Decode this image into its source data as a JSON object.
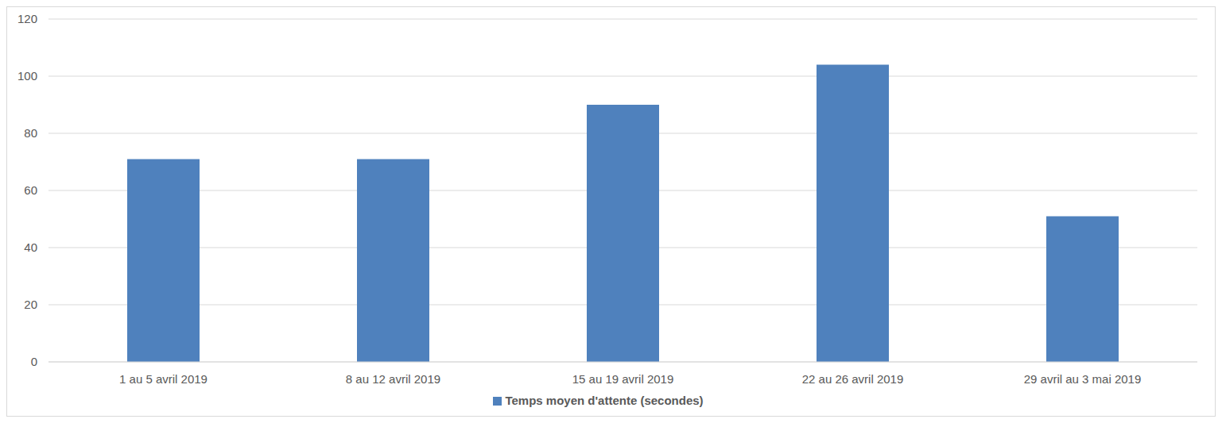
{
  "chart_data": {
    "type": "bar",
    "categories": [
      "1 au 5 avril 2019",
      "8 au 12 avril 2019",
      "15 au 19 avril 2019",
      "22 au 26 avril 2019",
      "29 avril au 3 mai 2019"
    ],
    "series": [
      {
        "name": "Temps moyen d'attente (secondes)",
        "color": "#4f81bd",
        "values": [
          71,
          71,
          90,
          104,
          51
        ]
      }
    ],
    "ylim": [
      0,
      120
    ],
    "yticks": [
      0,
      20,
      40,
      60,
      80,
      100,
      120
    ],
    "grid": true,
    "legend": "bottom"
  }
}
